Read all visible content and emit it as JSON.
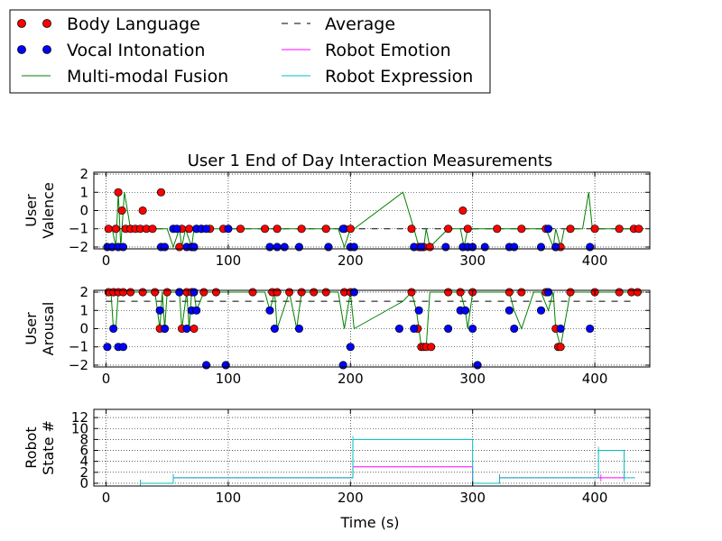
{
  "chart_data": {
    "type": "line",
    "title": "User 1 End of Day Interaction Measurements",
    "xlabel": "Time (s)",
    "xlim": [
      -10,
      445
    ],
    "xticks": [
      0,
      100,
      200,
      300,
      400
    ],
    "grid": true,
    "legend": {
      "placement": "top-left",
      "entries": [
        {
          "label": "Body Language",
          "marker": "circle",
          "color": "#ff0000"
        },
        {
          "label": "Average",
          "line": "dashed",
          "color": "#000000"
        },
        {
          "label": "Vocal Intonation",
          "marker": "circle",
          "color": "#0000ff"
        },
        {
          "label": "Robot Emotion",
          "line": "solid",
          "color": "#ff00ff"
        },
        {
          "label": "Multi-modal Fusion",
          "line": "solid",
          "color": "#008000"
        },
        {
          "label": "Robot Expression",
          "line": "solid",
          "color": "#00bfbf"
        }
      ]
    },
    "panels": [
      {
        "name": "valence",
        "ylabel": [
          "User",
          "Valence"
        ],
        "ylim": [
          -2.1,
          2.1
        ],
        "yticks": [
          "2",
          "1",
          "0",
          "−1",
          "−2"
        ],
        "yticks_values": [
          2,
          1,
          0,
          -1,
          -2
        ],
        "average": -1,
        "series": [
          {
            "name": "Body Language",
            "x": [
              2,
              8,
              10,
              13,
              16,
              20,
              24,
              28,
              30,
              33,
              38,
              45,
              60,
              62,
              68,
              72,
              74,
              78,
              85,
              96,
              110,
              130,
              140,
              160,
              180,
              195,
              200,
              250,
              256,
              260,
              265,
              280,
              292,
              296,
              320,
              340,
              360,
              368,
              372,
              380,
              400,
              420,
              432,
              436
            ],
            "y": [
              -1,
              -1,
              1,
              0,
              -1,
              -1,
              -1,
              -1,
              0,
              -1,
              -1,
              1,
              -2,
              -1,
              -1,
              -2,
              -1,
              -1,
              -1,
              -1,
              -1,
              -1,
              -1,
              -1,
              -1,
              -1,
              -1,
              -1,
              -2,
              -2,
              -2,
              -1,
              0,
              -1,
              -1,
              -1,
              -1,
              -2,
              -2,
              -1,
              -1,
              -1,
              -1,
              -1
            ]
          },
          {
            "name": "Vocal Intonation",
            "x": [
              1,
              5,
              10,
              14,
              45,
              48,
              55,
              58,
              66,
              70,
              72,
              74,
              78,
              82,
              100,
              134,
              140,
              146,
              158,
              182,
              194,
              200,
              203,
              252,
              258,
              278,
              292,
              296,
              300,
              310,
              330,
              334,
              356,
              362,
              368,
              396
            ],
            "y": [
              -2,
              -2,
              -2,
              -2,
              -2,
              -2,
              -1,
              -1,
              -2,
              -2,
              -2,
              -1,
              -1,
              -1,
              -1,
              -2,
              -2,
              -2,
              -2,
              -2,
              -1,
              -2,
              -2,
              -2,
              -2,
              -2,
              -2,
              -2,
              -2,
              -2,
              -2,
              -2,
              -2,
              -1,
              -2,
              -2
            ]
          },
          {
            "name": "Multi-modal Fusion",
            "x": [
              0,
              5,
              8,
              10,
              12,
              15,
              20,
              30,
              33,
              36,
              40,
              45,
              50,
              55,
              60,
              62,
              65,
              70,
              72,
              75,
              80,
              100,
              130,
              135,
              140,
              145,
              150,
              160,
              170,
              180,
              190,
              195,
              200,
              203,
              243,
              252,
              256,
              260,
              262,
              265,
              280,
              290,
              293,
              296,
              300,
              330,
              340,
              350,
              360,
              366,
              368,
              372,
              375,
              380,
              390,
              395,
              398,
              420,
              440
            ],
            "y": [
              -1,
              -1,
              -2,
              1,
              -2,
              1,
              -1,
              -1,
              -1,
              -1,
              -1,
              -1,
              -1,
              -2,
              -1,
              -2,
              -1,
              -2,
              -1,
              -1,
              -1,
              -1,
              -1,
              -1,
              -1,
              -1,
              -1,
              -1,
              -1,
              -1,
              -1,
              -2,
              -1,
              -1,
              1,
              -1,
              -2,
              -2,
              -1,
              -2,
              -1,
              -1,
              -2,
              -1,
              -1,
              -1,
              -1,
              -1,
              -1,
              -2,
              -1,
              -2,
              -1,
              -1,
              -1,
              1,
              -1,
              -1,
              -1
            ]
          }
        ]
      },
      {
        "name": "arousal",
        "ylabel": [
          "User",
          "Arousal"
        ],
        "ylim": [
          -2.1,
          2.1
        ],
        "yticks": [
          "2",
          "1",
          "0",
          "−1",
          "−2"
        ],
        "yticks_values": [
          2,
          1,
          0,
          -1,
          -2
        ],
        "average": 1.5,
        "series": [
          {
            "name": "Body Language",
            "x": [
              2,
              6,
              10,
              14,
              20,
              30,
              40,
              44,
              48,
              50,
              60,
              62,
              66,
              70,
              72,
              80,
              90,
              120,
              136,
              140,
              150,
              160,
              170,
              180,
              195,
              200,
              250,
              255,
              258,
              260,
              262,
              266,
              280,
              290,
              300,
              330,
              340,
              360,
              368,
              370,
              372,
              380,
              400,
              420,
              430,
              435
            ],
            "y": [
              2,
              2,
              2,
              2,
              2,
              2,
              2,
              0,
              0,
              2,
              2,
              0,
              2,
              2,
              0,
              2,
              2,
              2,
              2,
              2,
              2,
              2,
              2,
              2,
              2,
              2,
              2,
              0,
              -1,
              -1,
              -1,
              -1,
              2,
              2,
              2,
              2,
              2,
              2,
              0,
              -1,
              -1,
              2,
              2,
              2,
              2,
              2
            ]
          },
          {
            "name": "Vocal Intonation",
            "x": [
              1,
              6,
              10,
              14,
              44,
              48,
              60,
              66,
              70,
              72,
              74,
              82,
              98,
              134,
              138,
              158,
              194,
              200,
              203,
              240,
              252,
              256,
              280,
              290,
              294,
              300,
              304,
              330,
              334,
              356,
              362,
              372,
              396
            ],
            "y": [
              -1,
              0,
              -1,
              -1,
              1,
              0,
              2,
              0,
              1,
              2,
              1,
              -2,
              -2,
              1,
              0,
              0,
              -2,
              -1,
              2,
              0,
              0,
              1,
              0,
              1,
              1,
              0,
              -2,
              1,
              0,
              1,
              2,
              0,
              0
            ]
          },
          {
            "name": "Multi-modal Fusion",
            "x": [
              0,
              4,
              6,
              8,
              10,
              12,
              14,
              20,
              40,
              44,
              46,
              48,
              50,
              55,
              60,
              62,
              66,
              68,
              70,
              72,
              74,
              80,
              100,
              130,
              134,
              138,
              140,
              150,
              156,
              160,
              180,
              190,
              195,
              200,
              203,
              243,
              250,
              254,
              256,
              258,
              262,
              265,
              280,
              290,
              294,
              296,
              300,
              330,
              334,
              340,
              350,
              356,
              362,
              366,
              368,
              372,
              380,
              400,
              440
            ],
            "y": [
              2,
              2,
              0,
              0,
              2,
              2,
              2,
              2,
              2,
              0,
              2,
              0,
              2,
              2,
              2,
              0,
              2,
              0,
              2,
              2,
              1,
              2,
              2,
              2,
              1,
              2,
              0,
              2,
              0,
              2,
              2,
              2,
              0,
              2,
              0,
              1.5,
              2,
              1,
              0,
              -1,
              -1,
              2,
              2,
              2,
              1,
              0,
              2,
              2,
              1,
              0,
              2,
              2,
              1,
              2,
              0,
              -1,
              2,
              2,
              2
            ]
          }
        ]
      },
      {
        "name": "robot",
        "ylabel": [
          "Robot",
          "State #"
        ],
        "ylim": [
          -0.5,
          13.5
        ],
        "yticks": [
          "12",
          "10",
          "8",
          "6",
          "4",
          "2",
          "0"
        ],
        "yticks_values": [
          12,
          10,
          8,
          6,
          4,
          2,
          0
        ],
        "series": [
          {
            "name": "Robot Emotion",
            "step": true,
            "x": [
              28,
              55,
              55,
              202,
              202,
              300,
              300,
              322,
              322,
              405,
              405,
              425
            ],
            "y": [
              0,
              0,
              1,
              1,
              3,
              3,
              0,
              0,
              1,
              1,
              1,
              1
            ]
          },
          {
            "name": "Robot Expression",
            "step": true,
            "x": [
              28,
              55,
              55,
              202,
              202,
              300,
              300,
              322,
              322,
              403,
              403,
              424,
              424,
              433
            ],
            "y": [
              0,
              0,
              1,
              1,
              8,
              8,
              0,
              0,
              1,
              1,
              6,
              6,
              1,
              1
            ]
          }
        ]
      }
    ]
  }
}
